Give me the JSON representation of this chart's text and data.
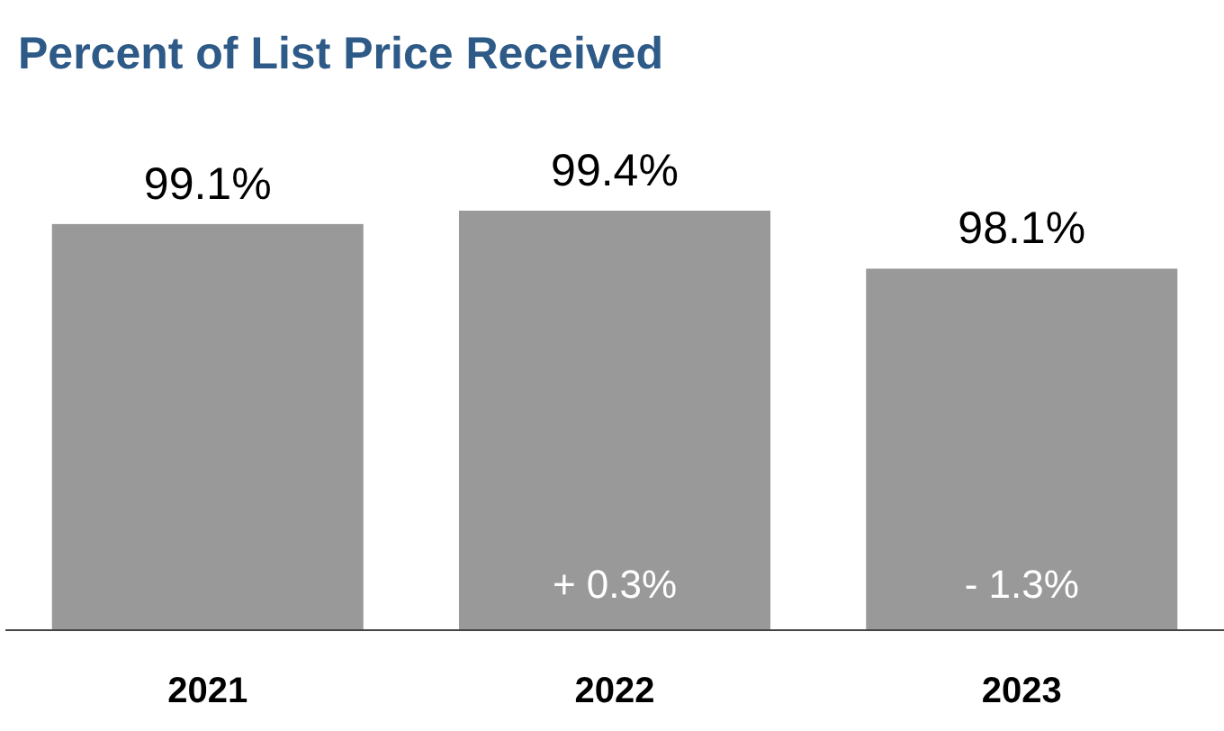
{
  "chart_data": {
    "type": "bar",
    "title": "Percent of List Price Received",
    "categories": [
      "2021",
      "2022",
      "2023"
    ],
    "values": [
      99.1,
      99.4,
      98.1
    ],
    "value_labels": [
      "99.1%",
      "99.4%",
      "98.1%"
    ],
    "color": "#999999",
    "ylim": [
      90,
      99.4
    ],
    "tick_labels": "x",
    "annotations": [
      "+ 0.3%",
      "- 1.3%"
    ]
  }
}
